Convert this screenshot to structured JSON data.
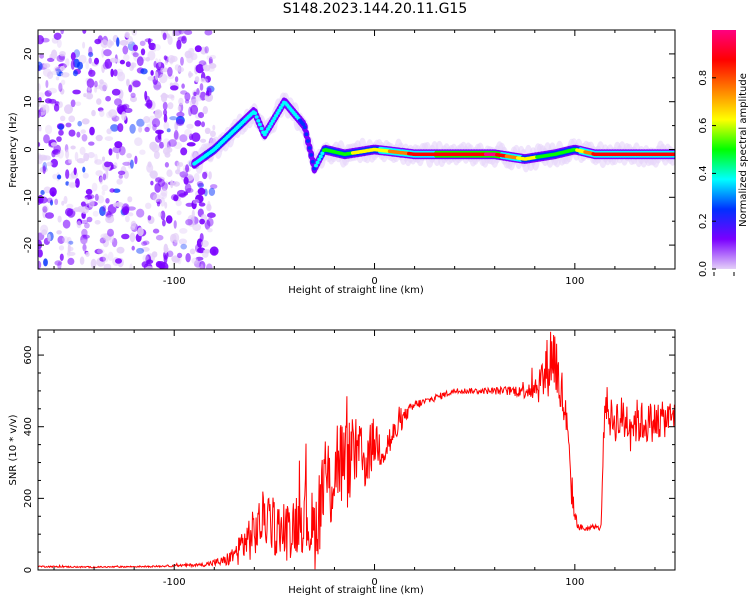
{
  "title": "S148.2023.144.20.11.G15",
  "chart_data": [
    {
      "type": "heatmap",
      "xlabel": "Height of straight line (km)",
      "ylabel": "Frequency (Hz)",
      "xlim": [
        -168,
        150
      ],
      "ylim": [
        -25,
        25
      ],
      "xticks": [
        -100,
        0,
        100
      ],
      "yticks": [
        -20,
        -10,
        0,
        10,
        20
      ],
      "colorbar": {
        "label": "Normalized spectral amplitude",
        "range": [
          0,
          1
        ],
        "ticks": [
          "0.0",
          "0.2",
          "0.4",
          "0.6",
          "0.8"
        ],
        "colors": [
          "#e4d0f8",
          "#7a00ff",
          "#0030ff",
          "#00ffff",
          "#00ff00",
          "#ffff00",
          "#ff8000",
          "#ff0000",
          "#ff0080"
        ]
      },
      "ridge": [
        {
          "x": -90,
          "y": -3,
          "a": 0.35
        },
        {
          "x": -80,
          "y": 0,
          "a": 0.4
        },
        {
          "x": -70,
          "y": 4,
          "a": 0.4
        },
        {
          "x": -60,
          "y": 8,
          "a": 0.35
        },
        {
          "x": -55,
          "y": 3,
          "a": 0.35
        },
        {
          "x": -45,
          "y": 10,
          "a": 0.35
        },
        {
          "x": -35,
          "y": 5,
          "a": 0.3
        },
        {
          "x": -30,
          "y": -4,
          "a": 0.3
        },
        {
          "x": -25,
          "y": 0,
          "a": 0.45
        },
        {
          "x": -15,
          "y": -1,
          "a": 0.55
        },
        {
          "x": 0,
          "y": 0,
          "a": 0.6
        },
        {
          "x": 20,
          "y": -1,
          "a": 0.85
        },
        {
          "x": 60,
          "y": -1,
          "a": 0.95
        },
        {
          "x": 75,
          "y": -2,
          "a": 0.6
        },
        {
          "x": 90,
          "y": -1,
          "a": 0.5
        },
        {
          "x": 100,
          "y": 0,
          "a": 0.55
        },
        {
          "x": 110,
          "y": -1,
          "a": 0.85
        },
        {
          "x": 150,
          "y": -1,
          "a": 0.85
        }
      ]
    },
    {
      "type": "line",
      "xlabel": "Height of straight line (km)",
      "ylabel": "SNR (10 * v/v)",
      "xlim": [
        -168,
        150
      ],
      "ylim": [
        0,
        670
      ],
      "xticks": [
        -100,
        0,
        100
      ],
      "yticks": [
        0,
        200,
        400,
        600
      ],
      "color": "#ff0000",
      "series": [
        {
          "x": [
            -168,
            -140,
            -110,
            -85,
            -75,
            -70,
            -65,
            -60,
            -55,
            -50,
            -45,
            -40,
            -35,
            -30,
            -25,
            -22,
            -18,
            -15,
            -10,
            -5,
            0,
            5,
            10,
            15,
            20,
            25,
            30,
            40,
            50,
            60,
            70,
            80,
            85,
            88,
            90,
            92,
            95,
            98,
            100,
            102,
            105,
            110,
            113,
            115,
            118,
            125,
            135,
            145,
            150
          ],
          "y": [
            10,
            8,
            10,
            15,
            25,
            40,
            80,
            100,
            150,
            120,
            100,
            130,
            160,
            100,
            250,
            240,
            320,
            280,
            330,
            300,
            360,
            340,
            380,
            430,
            460,
            470,
            480,
            500,
            500,
            500,
            500,
            510,
            540,
            600,
            600,
            520,
            450,
            250,
            150,
            120,
            115,
            120,
            115,
            480,
            420,
            420,
            410,
            420,
            430
          ],
          "noise": [
            2,
            2,
            2,
            5,
            15,
            30,
            60,
            70,
            80,
            80,
            80,
            90,
            110,
            110,
            140,
            140,
            140,
            140,
            100,
            90,
            70,
            60,
            40,
            20,
            15,
            10,
            10,
            8,
            8,
            10,
            15,
            40,
            80,
            100,
            110,
            90,
            80,
            60,
            20,
            10,
            8,
            6,
            6,
            50,
            60,
            70,
            60,
            50,
            50
          ]
        }
      ]
    }
  ]
}
